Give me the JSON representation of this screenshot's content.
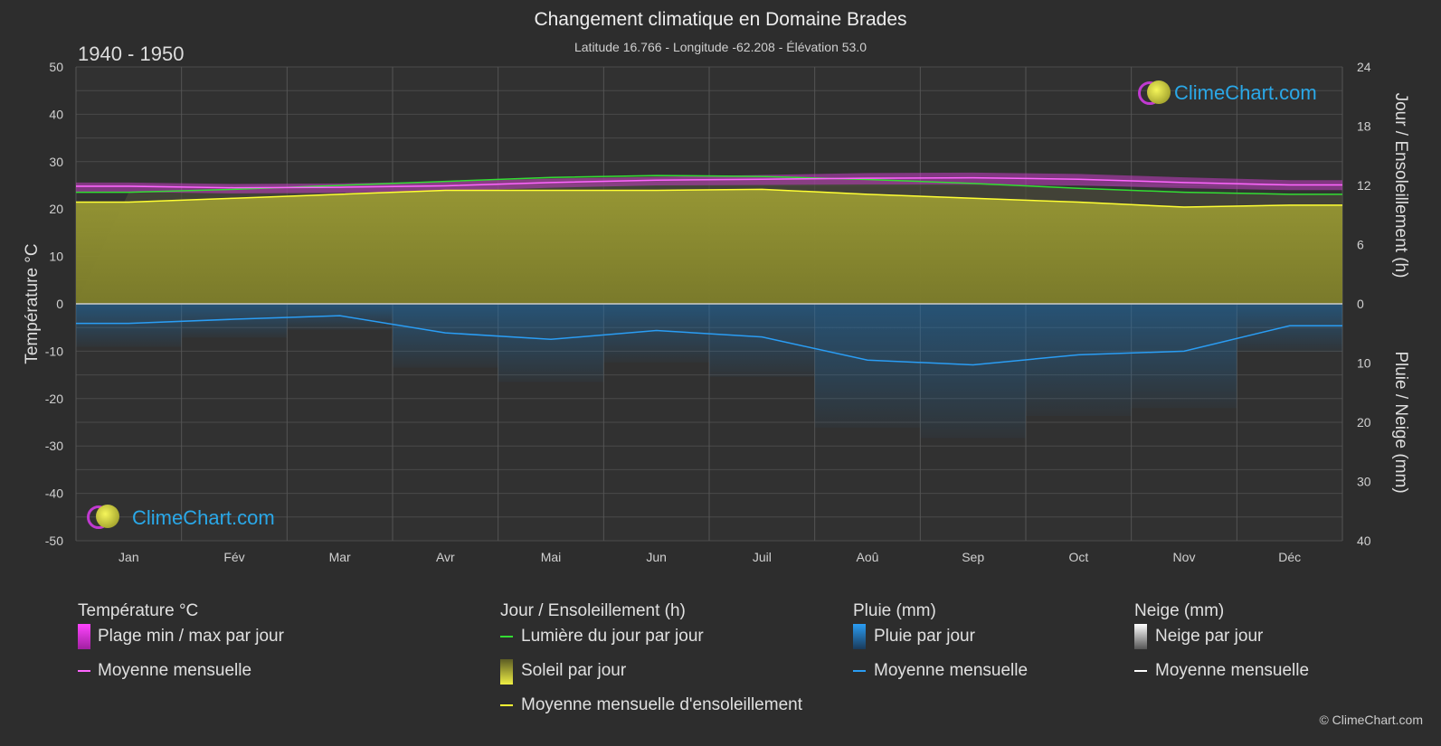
{
  "title": "Changement climatique en Domaine Brades",
  "subtitle": "Latitude 16.766 - Longitude -62.208 - Élévation 53.0",
  "period": "1940 - 1950",
  "axes": {
    "left_title": "Température °C",
    "right_top_title": "Jour / Ensoleillement (h)",
    "right_bottom_title": "Pluie / Neige (mm)"
  },
  "logo_text": "ClimeChart.com",
  "copyright": "© ClimeChart.com",
  "legend": {
    "temp": {
      "header": "Température °C",
      "range": "Plage min / max par jour",
      "mean": "Moyenne mensuelle"
    },
    "sun": {
      "header": "Jour / Ensoleillement (h)",
      "daylight": "Lumière du jour par jour",
      "sunshine": "Soleil par jour",
      "sun_mean": "Moyenne mensuelle d'ensoleillement"
    },
    "rain": {
      "header": "Pluie (mm)",
      "daily": "Pluie par jour",
      "mean": "Moyenne mensuelle"
    },
    "snow": {
      "header": "Neige (mm)",
      "daily": "Neige par jour",
      "mean": "Moyenne mensuelle"
    }
  },
  "colors": {
    "background": "#2d2d2d",
    "temp_range": "#d63fd6",
    "temp_mean": "#ff66ff",
    "daylight": "#33dd33",
    "sunshine_fill": "#8c8c2e",
    "sunshine_mean": "#ffff33",
    "rain": "#1e6fae",
    "rain_mean": "#2a9df4",
    "snow_mean": "#ffffff"
  },
  "chart_data": {
    "type": "line",
    "categories": [
      "Jan",
      "Fév",
      "Mar",
      "Avr",
      "Mai",
      "Jun",
      "Juil",
      "Aoû",
      "Sep",
      "Oct",
      "Nov",
      "Déc"
    ],
    "y_left": {
      "label": "Température °C",
      "range": [
        -50,
        50
      ],
      "ticks": [
        50,
        40,
        30,
        20,
        10,
        0,
        -10,
        -20,
        -30,
        -40,
        -50
      ]
    },
    "y_right_top": {
      "label": "Jour / Ensoleillement (h)",
      "range": [
        0,
        24
      ],
      "ticks": [
        24,
        18,
        12,
        6,
        0
      ]
    },
    "y_right_bottom": {
      "label": "Pluie / Neige (mm)",
      "range": [
        0,
        40
      ],
      "ticks": [
        0,
        10,
        20,
        30,
        40
      ]
    },
    "grid": true,
    "series": [
      {
        "name": "Moyenne mensuelle",
        "group": "temperature",
        "unit": "°C",
        "values": [
          24.8,
          24.5,
          24.6,
          24.9,
          25.6,
          26.1,
          26.3,
          26.5,
          26.6,
          26.3,
          25.6,
          25.1
        ]
      },
      {
        "name": "Plage min / max par jour",
        "group": "temperature",
        "unit": "°C",
        "min": [
          23.6,
          23.3,
          23.4,
          23.8,
          24.5,
          25.0,
          25.1,
          25.2,
          25.2,
          25.0,
          24.4,
          24.0
        ],
        "max": [
          25.6,
          25.3,
          25.4,
          25.8,
          26.4,
          26.8,
          27.2,
          27.6,
          27.7,
          27.4,
          26.7,
          26.1
        ]
      },
      {
        "name": "Lumière du jour par jour",
        "group": "sun",
        "unit": "h",
        "values": [
          11.3,
          11.6,
          12.0,
          12.4,
          12.8,
          13.0,
          12.9,
          12.6,
          12.2,
          11.7,
          11.3,
          11.1
        ]
      },
      {
        "name": "Moyenne mensuelle d'ensoleillement",
        "group": "sun",
        "unit": "h",
        "values": [
          10.3,
          10.7,
          11.1,
          11.5,
          11.5,
          11.5,
          11.6,
          11.1,
          10.7,
          10.3,
          9.8,
          10.0
        ]
      },
      {
        "name": "Moyenne mensuelle",
        "group": "rain",
        "unit": "mm",
        "values": [
          3.3,
          2.6,
          2.0,
          4.9,
          6.0,
          4.5,
          5.6,
          9.5,
          10.3,
          8.6,
          8.0,
          3.7
        ]
      },
      {
        "name": "Moyenne mensuelle",
        "group": "snow",
        "unit": "mm",
        "values": [
          0,
          0,
          0,
          0,
          0,
          0,
          0,
          0,
          0,
          0,
          0,
          0
        ]
      }
    ]
  }
}
